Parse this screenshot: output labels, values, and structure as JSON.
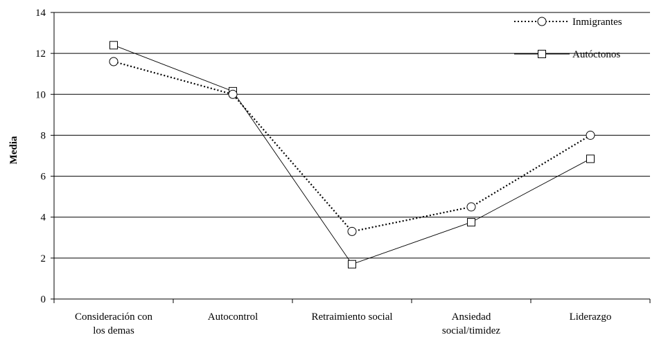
{
  "chart_data": {
    "type": "line",
    "title": "",
    "xlabel": "",
    "ylabel": "Media",
    "ylim": [
      0,
      14
    ],
    "yticks": [
      0,
      2,
      4,
      6,
      8,
      10,
      12,
      14
    ],
    "grid": true,
    "legend_position": "top-right",
    "categories": [
      [
        "Consideración con",
        "los demas"
      ],
      [
        "Autocontrol"
      ],
      [
        "Retraimiento social"
      ],
      [
        "Ansiedad",
        "social/timidez"
      ],
      [
        "Liderazgo"
      ]
    ],
    "series": [
      {
        "name": "Inmigrantes",
        "marker": "circle",
        "line": "dotted",
        "values": [
          11.6,
          10.0,
          3.3,
          4.5,
          8.0
        ]
      },
      {
        "name": "Autóctonos",
        "marker": "square",
        "line": "solid",
        "values": [
          12.4,
          10.15,
          1.7,
          3.75,
          6.85
        ]
      }
    ]
  }
}
